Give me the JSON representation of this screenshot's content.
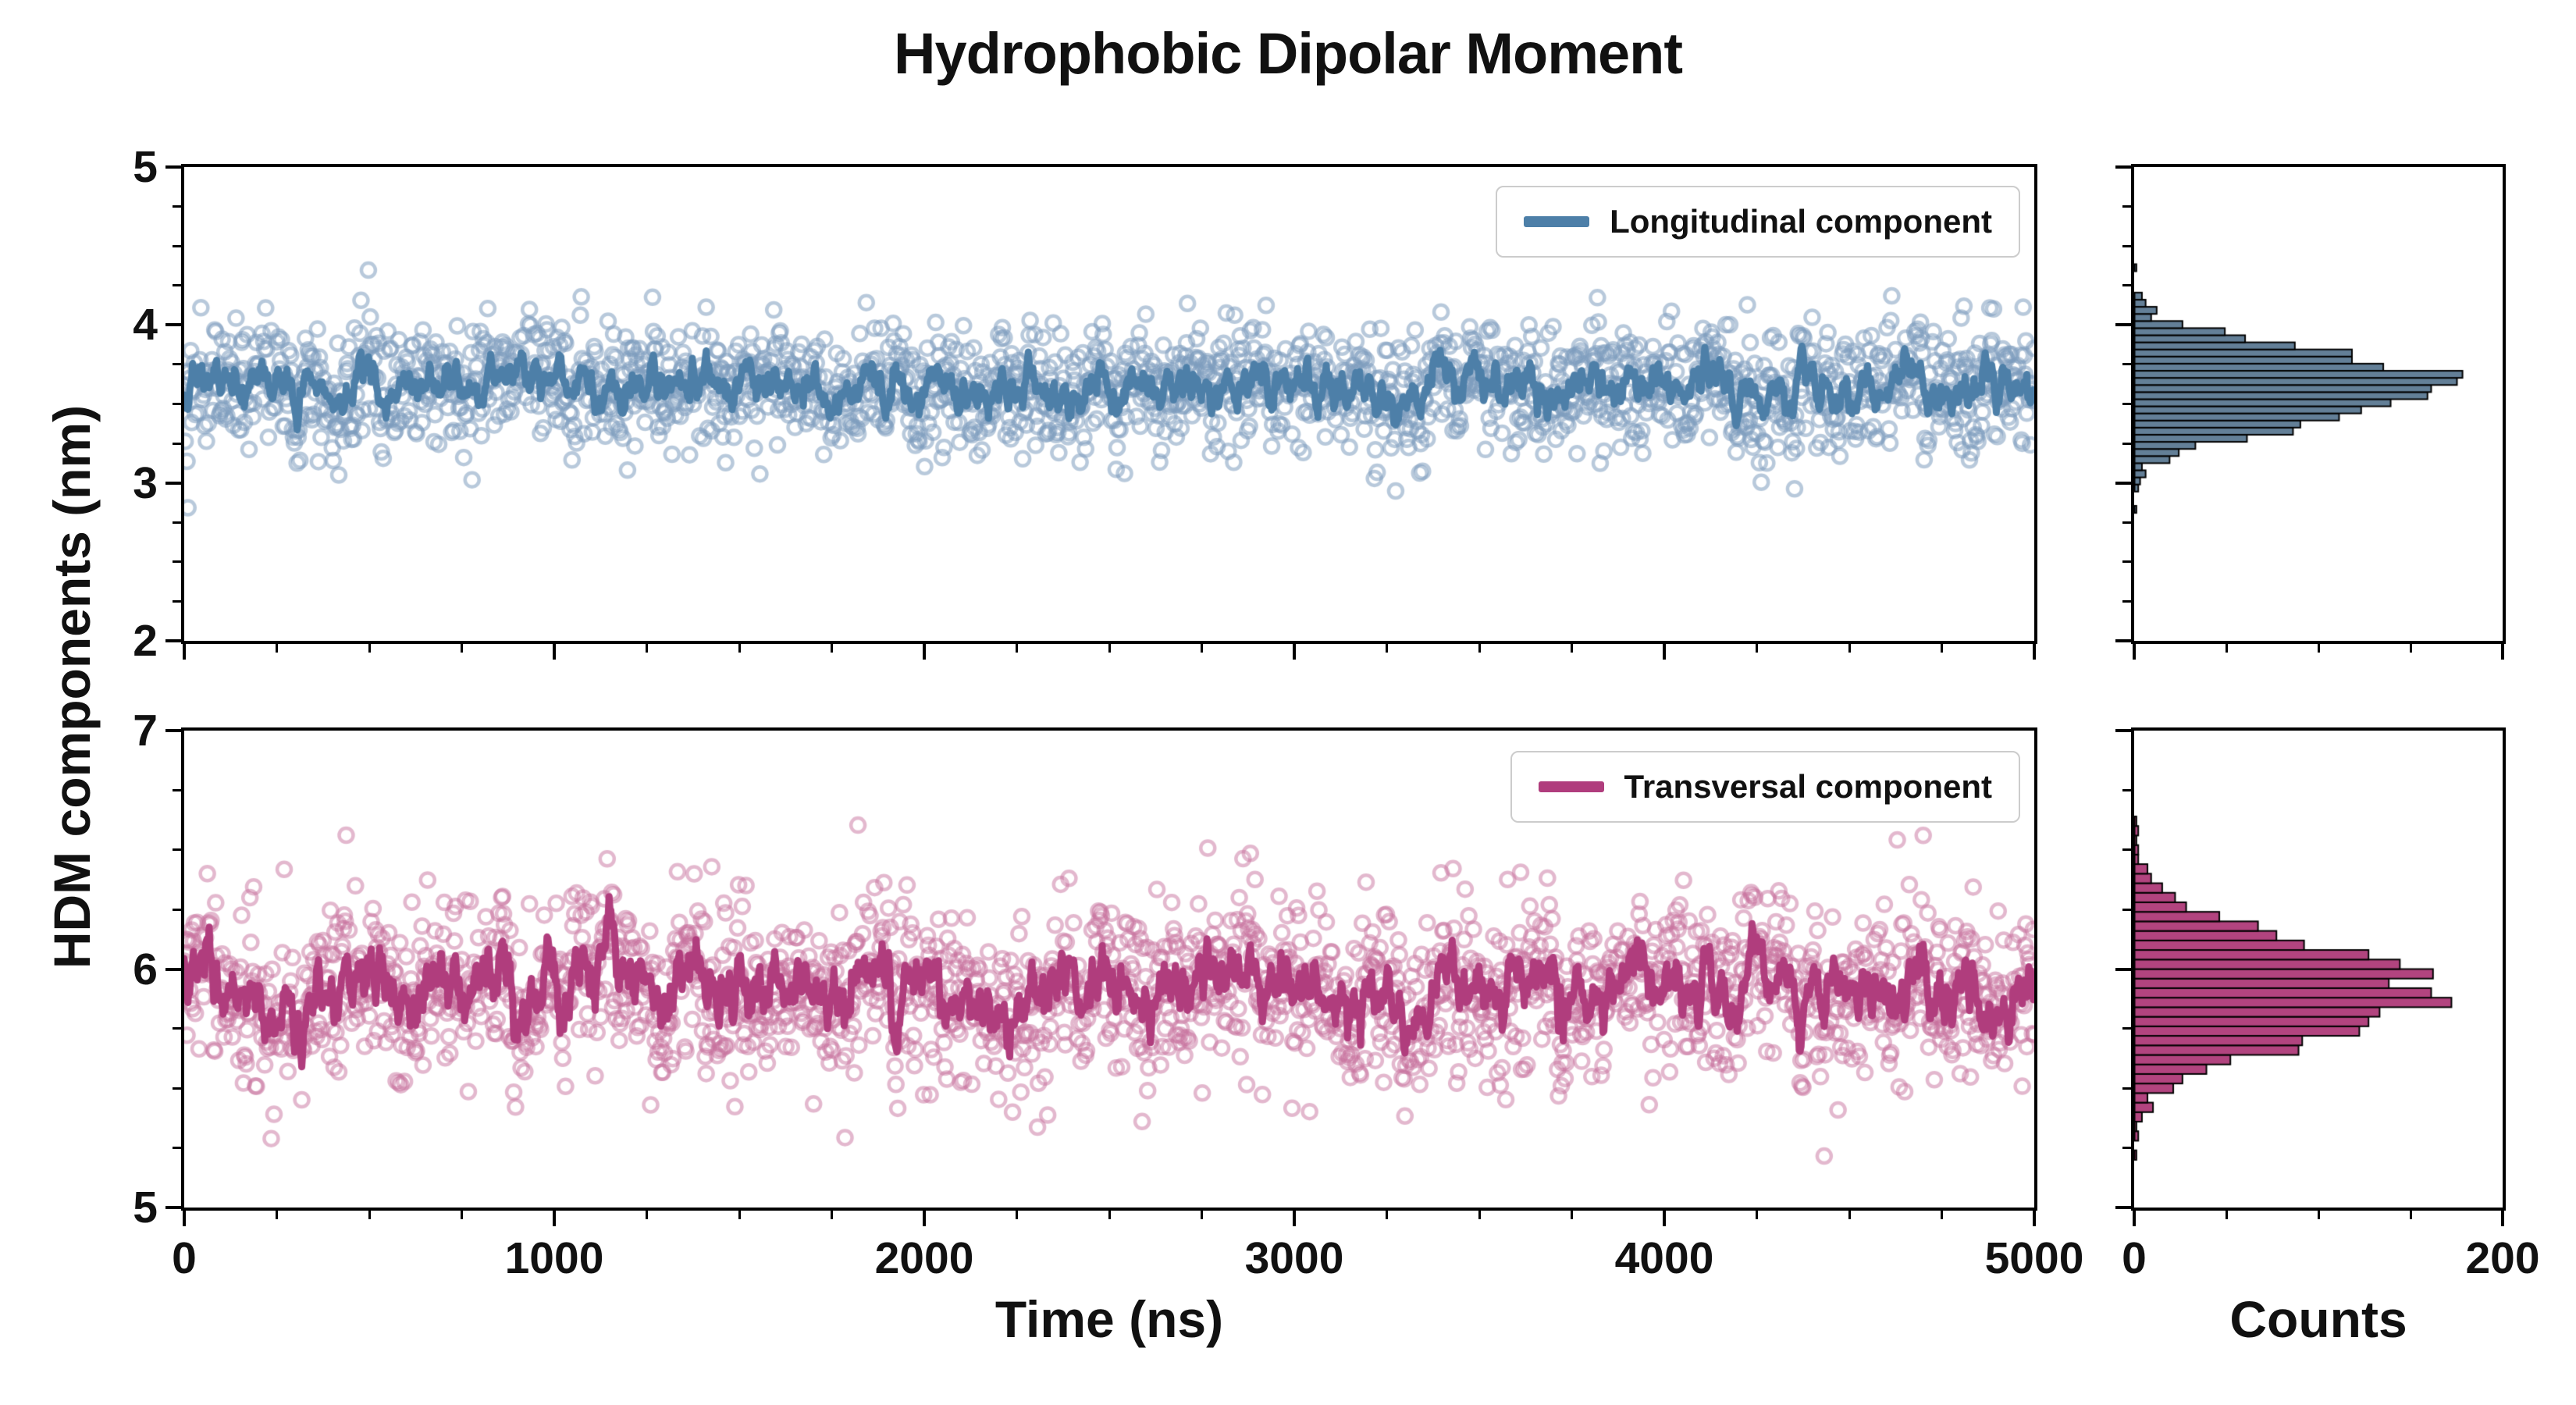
{
  "title": "Hydrophobic Dipolar Moment",
  "ylabel": "HDM components (nm)",
  "xlabel": "Time (ns)",
  "counts_label": "Counts",
  "chart_data": [
    {
      "type": "scatter",
      "name": "Longitudinal component",
      "legend": "Longitudinal component",
      "x_range": [
        0,
        5000
      ],
      "y_range": [
        2,
        5
      ],
      "x_ticks": [
        0,
        1000,
        2000,
        3000,
        4000,
        5000
      ],
      "x_minor_step": 250,
      "y_ticks": [
        5,
        4,
        3,
        2
      ],
      "y_minor_step": 0.25,
      "n_points": 2000,
      "mean": 3.6,
      "scatter_std": 0.19,
      "line_smooth": 0.86,
      "line_noise": 0.045,
      "seed": 42,
      "line_color": "#4d7fa8",
      "marker_color": "rgba(125,157,189,0.55)",
      "grid": false,
      "legend_position": "upper right",
      "histogram": {
        "x_range": [
          0,
          200
        ],
        "x_ticks": [
          0,
          200
        ],
        "x_minor_step": 50,
        "bin_width": 0.045,
        "fill": "#637f97",
        "edge": "#000000",
        "peak_counts": 170,
        "xlabel": "Counts"
      }
    },
    {
      "type": "scatter",
      "name": "Transversal component",
      "legend": "Transversal component",
      "x_range": [
        0,
        5000
      ],
      "y_range": [
        5,
        7
      ],
      "x_ticks": [
        0,
        1000,
        2000,
        3000,
        4000,
        5000
      ],
      "x_minor_step": 250,
      "y_ticks": [
        7,
        6,
        5
      ],
      "y_minor_step": 0.25,
      "n_points": 2000,
      "mean": 5.92,
      "scatter_std": 0.17,
      "line_smooth": 0.86,
      "line_noise": 0.045,
      "seed": 7,
      "line_color": "#b03d7d",
      "marker_color": "rgba(199,114,158,0.5)",
      "grid": false,
      "legend_position": "upper right",
      "histogram": {
        "x_range": [
          0,
          200
        ],
        "x_ticks": [
          0,
          200
        ],
        "x_minor_step": 50,
        "bin_width": 0.04,
        "fill": "#b2447f",
        "edge": "#000000",
        "peak_counts": 165,
        "xlabel": "Counts"
      }
    }
  ]
}
